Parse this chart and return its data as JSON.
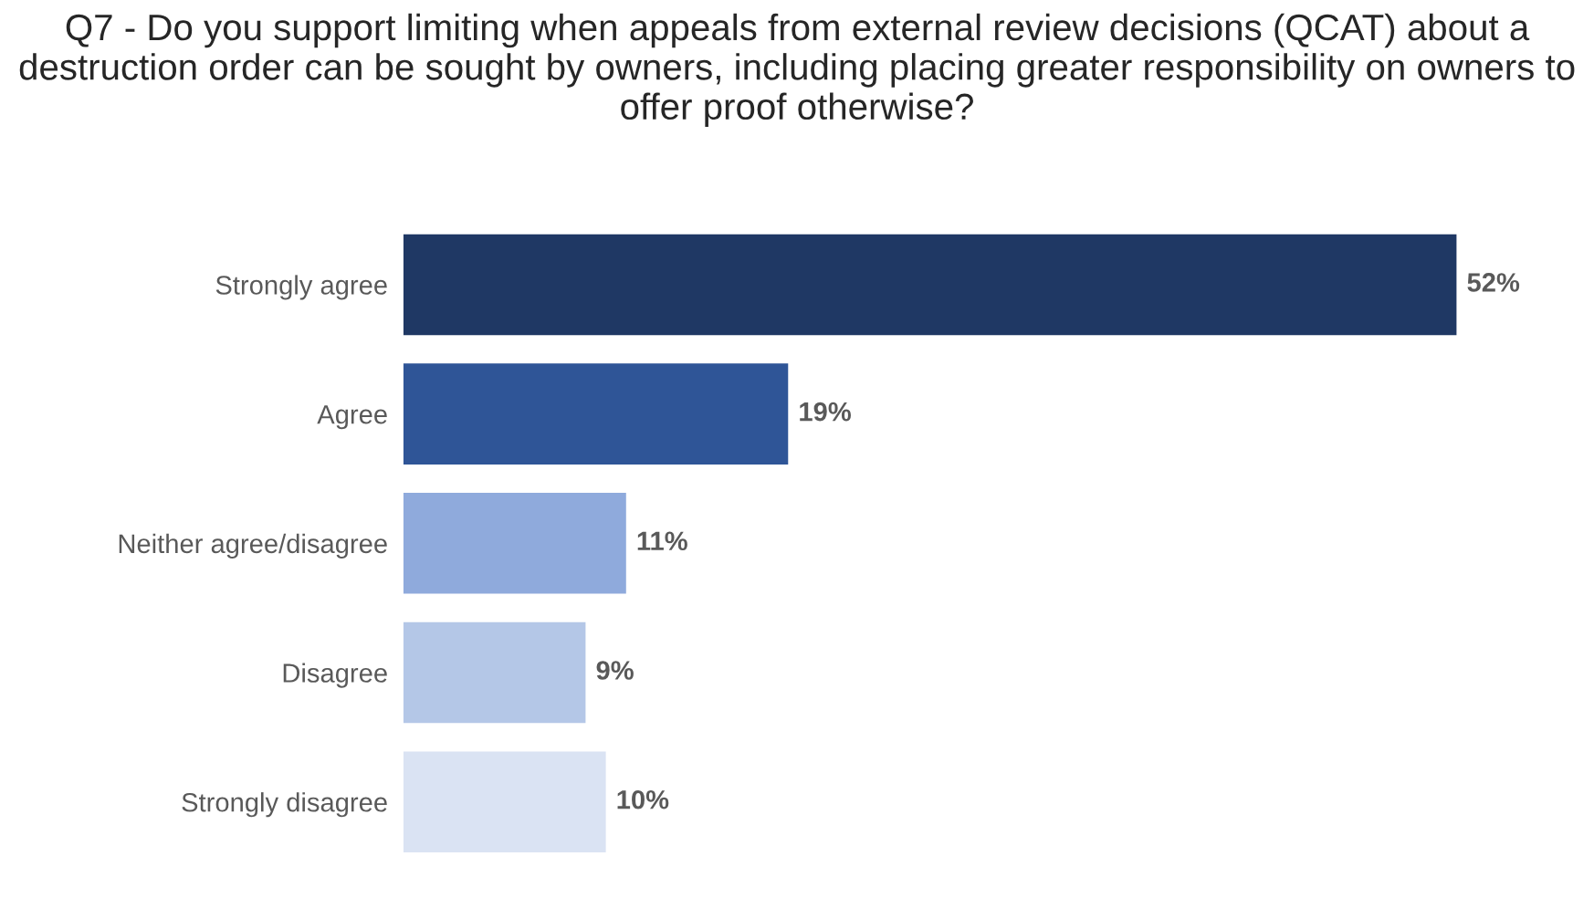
{
  "chart_data": {
    "type": "bar",
    "orientation": "horizontal",
    "title": "Q7 - Do you support limiting when appeals from external review decisions (QCAT) about a destruction order can be sought by owners, including placing greater responsibility on owners to offer proof otherwise?",
    "categories": [
      "Strongly agree",
      "Agree",
      "Neither agree/disagree",
      "Disagree",
      "Strongly disagree"
    ],
    "values": [
      52,
      19,
      11,
      9,
      10
    ],
    "colors": [
      "#1f3864",
      "#2f5597",
      "#8faadc",
      "#b4c7e7",
      "#dae3f3"
    ],
    "value_labels": [
      "52%",
      "19%",
      "11%",
      "9%",
      "10%"
    ],
    "grid": false,
    "legend": false
  }
}
